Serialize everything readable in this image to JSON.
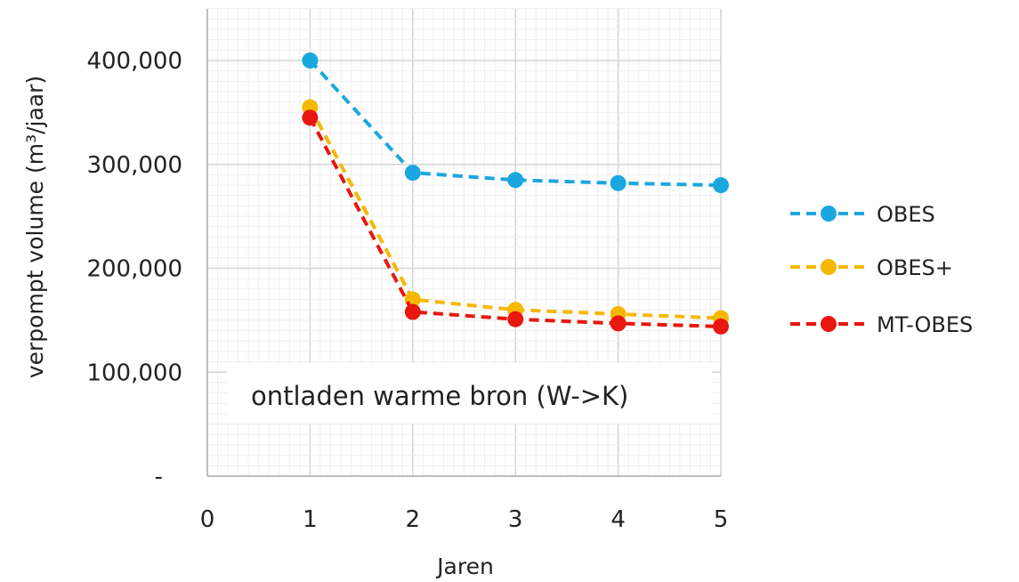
{
  "chart_data": {
    "type": "line",
    "xlabel": "Jaren",
    "ylabel": "verpompt volume (m³/jaar)",
    "x_ticks": [
      "0",
      "1",
      "2",
      "3",
      "4",
      "5"
    ],
    "y_ticks": [
      {
        "value": 0,
        "label": "-"
      },
      {
        "value": 100000,
        "label": "100,000"
      },
      {
        "value": 200000,
        "label": "200,000"
      },
      {
        "value": 300000,
        "label": "300,000"
      },
      {
        "value": 400000,
        "label": "400,000"
      }
    ],
    "xlim": [
      0,
      5
    ],
    "ylim": [
      0,
      450000
    ],
    "grid": true,
    "legend_position": "right",
    "annotation": "ontladen warme bron (W->K)",
    "x": [
      1,
      2,
      3,
      4,
      5
    ],
    "series": [
      {
        "name": "OBES",
        "color": "#1aa7e0",
        "values": [
          400000,
          292000,
          285000,
          282000,
          280000
        ]
      },
      {
        "name": "OBES+",
        "color": "#f5b800",
        "values": [
          355000,
          170000,
          160000,
          156000,
          152000
        ]
      },
      {
        "name": "MT-OBES",
        "color": "#e8170f",
        "values": [
          345000,
          158000,
          151000,
          147000,
          144000
        ]
      }
    ]
  }
}
